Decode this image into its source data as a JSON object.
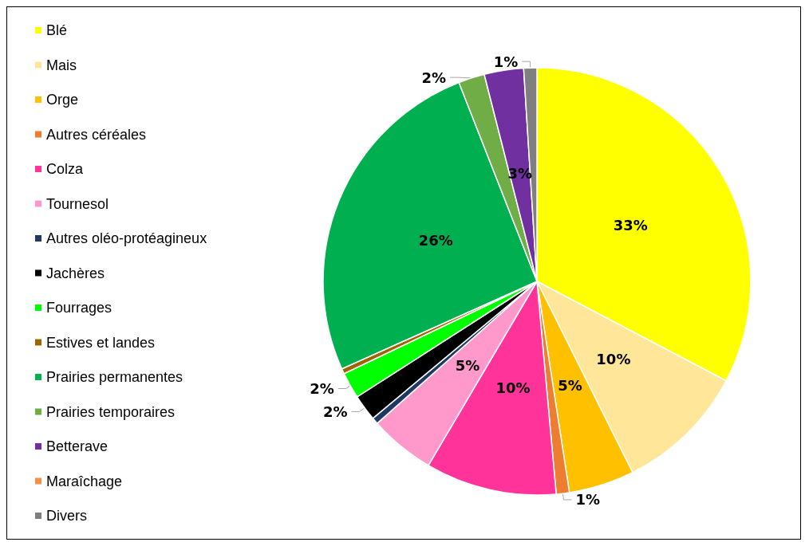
{
  "chart_data": {
    "type": "pie",
    "categories": [
      "Blé",
      "Mais",
      "Orge",
      "Autres céréales",
      "Colza",
      "Tournesol",
      "Autres oléo-protéagineux",
      "Jachères",
      "Fourrages",
      "Estives et landes",
      "Prairies permanentes",
      "Prairies temporaires",
      "Betterave",
      "Maraîchage",
      "Divers"
    ],
    "values": [
      33,
      10,
      5,
      1,
      10,
      5,
      0.5,
      2,
      2,
      0.4,
      26,
      2,
      3,
      null,
      1
    ],
    "value_labels": [
      "33%",
      "10%",
      "5%",
      "1%",
      "10%",
      "5%",
      null,
      "2%",
      "2%",
      null,
      "26%",
      "2%",
      "3%",
      null,
      "1%"
    ],
    "colors": [
      "#ffff00",
      "#ffe699",
      "#ffc000",
      "#ed7d31",
      "#ff3399",
      "#ff99cc",
      "#1f3864",
      "#000000",
      "#00ff00",
      "#996600",
      "#00b050",
      "#70ad47",
      "#7030a0",
      "#f4904a",
      "#7f7f7f"
    ],
    "legend": "left"
  }
}
